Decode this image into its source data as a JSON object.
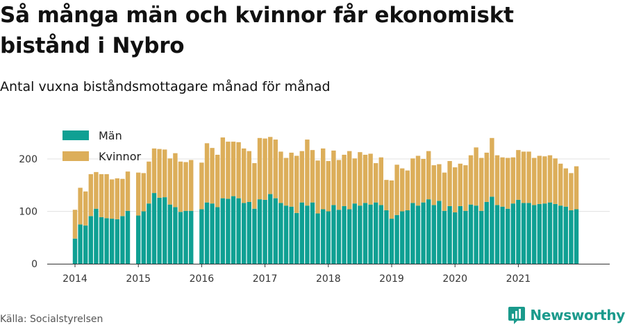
{
  "header": {
    "title": "Så många män och kvinnor får ekonomiskt bistånd i Nybro",
    "subtitle": "Antal vuxna biståndsmottagare månad för månad"
  },
  "footer": {
    "source": "Källa: Socialstyrelsen",
    "brand": "Newsworthy"
  },
  "colors": {
    "men": "#0fa093",
    "women": "#dcae5a",
    "grid": "#e3e3e3",
    "axis": "#333333"
  },
  "chart_data": {
    "type": "bar",
    "stacked": true,
    "ylim": [
      0,
      250
    ],
    "y_ticks": [
      0,
      100,
      200
    ],
    "x_ticks": [
      "2014",
      "2015",
      "2016",
      "2017",
      "2018",
      "2019",
      "2020",
      "2021"
    ],
    "grid": "horizontal",
    "legend_position": "top-left",
    "start_month": "2014-01",
    "series": [
      {
        "name": "Män",
        "color": "#0fa093",
        "values": [
          48,
          75,
          73,
          91,
          105,
          89,
          87,
          86,
          85,
          91,
          101,
          null,
          92,
          100,
          115,
          135,
          126,
          127,
          113,
          108,
          99,
          101,
          101,
          null,
          104,
          117,
          115,
          108,
          125,
          124,
          129,
          125,
          116,
          118,
          105,
          123,
          122,
          133,
          125,
          116,
          111,
          109,
          97,
          117,
          111,
          117,
          96,
          104,
          100,
          112,
          103,
          110,
          104,
          115,
          111,
          116,
          113,
          117,
          112,
          102,
          86,
          93,
          100,
          102,
          116,
          111,
          117,
          123,
          112,
          120,
          101,
          110,
          98,
          110,
          101,
          113,
          111,
          101,
          118,
          128,
          112,
          109,
          105,
          115,
          122,
          116,
          116,
          112,
          114,
          115,
          117,
          114,
          111,
          109,
          102,
          104
        ]
      },
      {
        "name": "Kvinnor",
        "color": "#dcae5a",
        "values": [
          55,
          70,
          65,
          80,
          70,
          82,
          84,
          75,
          78,
          71,
          75,
          null,
          82,
          73,
          80,
          85,
          93,
          91,
          88,
          103,
          96,
          93,
          97,
          null,
          89,
          113,
          106,
          100,
          116,
          109,
          104,
          107,
          104,
          97,
          87,
          117,
          117,
          109,
          112,
          98,
          91,
          103,
          109,
          98,
          126,
          100,
          101,
          116,
          96,
          104,
          95,
          98,
          111,
          86,
          102,
          92,
          97,
          75,
          91,
          58,
          73,
          96,
          82,
          76,
          85,
          95,
          83,
          92,
          76,
          70,
          73,
          86,
          86,
          81,
          87,
          94,
          111,
          101,
          94,
          112,
          95,
          94,
          97,
          88,
          95,
          98,
          98,
          90,
          92,
          90,
          90,
          87,
          80,
          73,
          71,
          82
        ]
      }
    ]
  }
}
